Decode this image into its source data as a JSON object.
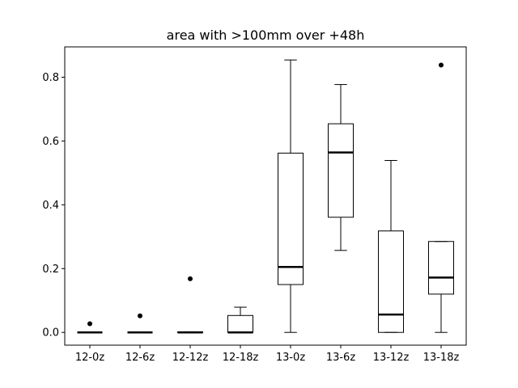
{
  "chart_data": {
    "type": "box",
    "title": "area with >100mm over +48h",
    "xlabel": "",
    "ylabel": "",
    "categories": [
      "12-0z",
      "12-6z",
      "12-12z",
      "12-18z",
      "13-0z",
      "13-6z",
      "13-12z",
      "13-18z"
    ],
    "ylim": [
      -0.04,
      0.895
    ],
    "yticks": [
      0.0,
      0.2,
      0.4,
      0.6,
      0.8
    ],
    "ytick_labels": [
      "0.0",
      "0.2",
      "0.4",
      "0.6",
      "0.8"
    ],
    "grid": false,
    "boxes": [
      {
        "whisker_low": 0.0,
        "q1": 0.0,
        "median": 0.0,
        "q3": 0.0,
        "whisker_high": 0.0,
        "outliers": [
          0.027
        ]
      },
      {
        "whisker_low": 0.0,
        "q1": 0.0,
        "median": 0.0,
        "q3": 0.0,
        "whisker_high": 0.0,
        "outliers": [
          0.052
        ]
      },
      {
        "whisker_low": 0.0,
        "q1": 0.0,
        "median": 0.0,
        "q3": 0.002,
        "whisker_high": 0.002,
        "outliers": [
          0.168
        ]
      },
      {
        "whisker_low": 0.0,
        "q1": 0.0,
        "median": 0.0,
        "q3": 0.053,
        "whisker_high": 0.079,
        "outliers": []
      },
      {
        "whisker_low": 0.0,
        "q1": 0.15,
        "median": 0.205,
        "q3": 0.562,
        "whisker_high": 0.854,
        "outliers": []
      },
      {
        "whisker_low": 0.257,
        "q1": 0.361,
        "median": 0.564,
        "q3": 0.654,
        "whisker_high": 0.777,
        "outliers": []
      },
      {
        "whisker_low": 0.0,
        "q1": 0.0,
        "median": 0.056,
        "q3": 0.318,
        "whisker_high": 0.539,
        "outliers": []
      },
      {
        "whisker_low": 0.0,
        "q1": 0.12,
        "median": 0.172,
        "q3": 0.285,
        "whisker_high": 0.285,
        "outliers": [
          0.838
        ]
      }
    ],
    "colors": {
      "box": "#000000",
      "median": "#000000",
      "outlier": "#000000",
      "background": "#ffffff"
    }
  }
}
